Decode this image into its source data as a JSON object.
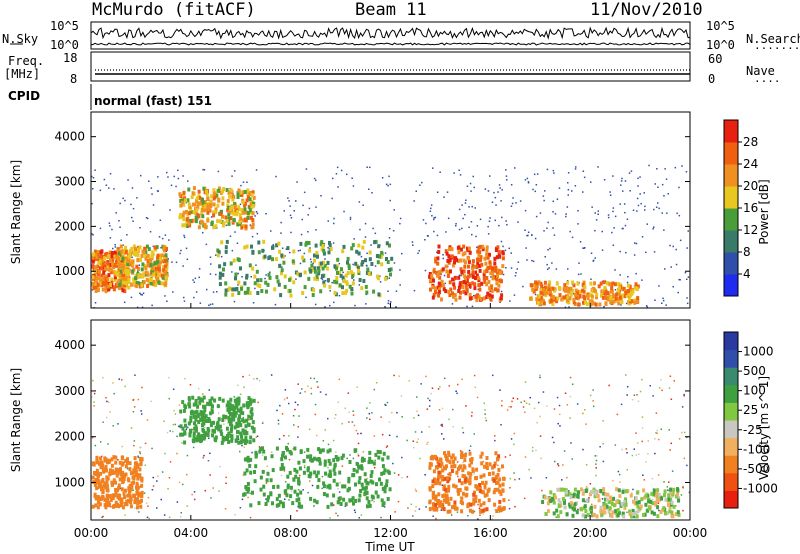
{
  "header": {
    "station": "McMurdo (fitACF)",
    "beam": "Beam 11",
    "date": "11/Nov/2010"
  },
  "top_panels": {
    "nsky_label": "N.Sky",
    "nsearch_label": "N.Search",
    "nsky_tick_top": "10^5",
    "nsky_tick_bottom": "10^0",
    "nsearch_tick_top": "10^5",
    "nsearch_tick_bottom": "10^0",
    "freq_label_line1": "Freq.",
    "freq_label_line2": "[MHz]",
    "freq_tick_top": "18",
    "freq_tick_bottom": "8",
    "nave_label": "Nave",
    "nave_tick_top": "60",
    "nave_tick_bottom": "0",
    "cpid_label": "CPID",
    "cpid_value": "normal (fast) 151"
  },
  "colors": {
    "power_scale": [
      "#1f2cf0",
      "#2f4faa",
      "#3a7a68",
      "#4a9e3a",
      "#e8c820",
      "#f09020",
      "#f06010",
      "#e82010"
    ],
    "velocity_scale": [
      "#e82010",
      "#f05010",
      "#f08020",
      "#f0b060",
      "#c8c8c0",
      "#80c840",
      "#40a040",
      "#3a8a70",
      "#2f4faa",
      "#2a3aa0"
    ],
    "frame": "#000000"
  },
  "chart_data": [
    {
      "type": "heatmap",
      "title": "Power",
      "xlabel": "",
      "ylabel": "Slant Range [km]",
      "xlim": [
        "00:00",
        "00:00"
      ],
      "ylim": [
        180,
        4550
      ],
      "y_ticks": [
        1000,
        2000,
        3000,
        4000
      ],
      "colorbar": {
        "label": "Power [dB]",
        "ticks": [
          4,
          8,
          12,
          16,
          20,
          24,
          28
        ],
        "range": [
          0,
          32
        ]
      },
      "echo_regions": [
        {
          "t_start": "00:00",
          "t_end": "01:30",
          "range_km": [
            600,
            1500
          ],
          "power_db": 24
        },
        {
          "t_start": "01:00",
          "t_end": "03:00",
          "range_km": [
            700,
            1600
          ],
          "power_db": 20
        },
        {
          "t_start": "03:30",
          "t_end": "06:30",
          "range_km": [
            2000,
            2900
          ],
          "power_db": 20
        },
        {
          "t_start": "05:00",
          "t_end": "12:00",
          "range_km": [
            500,
            1700
          ],
          "power_db": 14
        },
        {
          "t_start": "13:30",
          "t_end": "16:30",
          "range_km": [
            400,
            1600
          ],
          "power_db": 26
        },
        {
          "t_start": "17:30",
          "t_end": "22:00",
          "range_km": [
            300,
            800
          ],
          "power_db": 22
        }
      ]
    },
    {
      "type": "heatmap",
      "title": "Velocity",
      "xlabel": "Time UT",
      "ylabel": "Slant Range [km]",
      "x_ticks": [
        "00:00",
        "04:00",
        "08:00",
        "12:00",
        "16:00",
        "20:00",
        "00:00"
      ],
      "ylim": [
        180,
        4550
      ],
      "y_ticks": [
        1000,
        2000,
        3000,
        4000
      ],
      "colorbar": {
        "label": "Velocity [m s^-1]",
        "ticks": [
          1000,
          500,
          100,
          25,
          -25,
          -100,
          -500,
          -1000
        ]
      },
      "echo_regions": [
        {
          "t_start": "00:00",
          "t_end": "02:00",
          "range_km": [
            500,
            1600
          ],
          "velocity": -300
        },
        {
          "t_start": "03:30",
          "t_end": "06:30",
          "range_km": [
            1900,
            2900
          ],
          "velocity": 300
        },
        {
          "t_start": "06:00",
          "t_end": "12:00",
          "range_km": [
            500,
            1800
          ],
          "velocity": 300
        },
        {
          "t_start": "13:30",
          "t_end": "16:30",
          "range_km": [
            400,
            1700
          ],
          "velocity": -400
        },
        {
          "t_start": "18:00",
          "t_end": "23:30",
          "range_km": [
            300,
            900
          ],
          "velocity": 50
        }
      ]
    }
  ]
}
